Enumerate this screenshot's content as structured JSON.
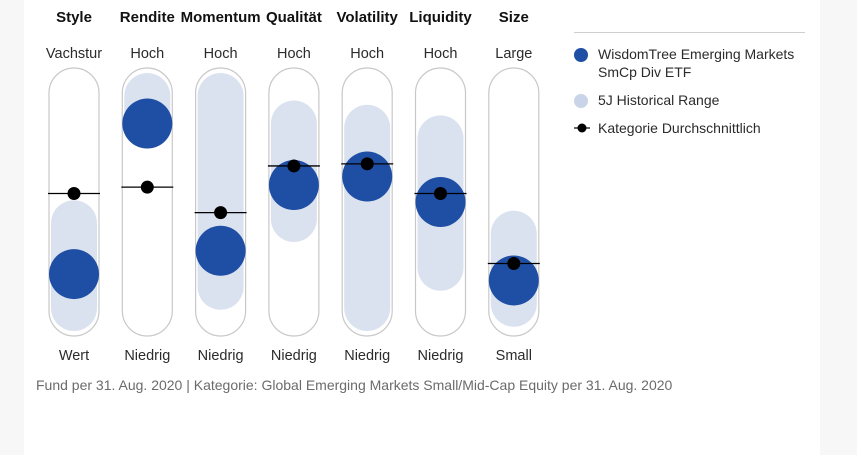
{
  "chart_data": {
    "type": "range-bubble",
    "scale": [
      0,
      100
    ],
    "columns": [
      {
        "header": "Style",
        "top_label": "Vachstur",
        "bottom_label": "Wert",
        "range": [
          0,
          40
        ],
        "fund": 16,
        "category": 54
      },
      {
        "header": "Rendite",
        "top_label": "Hoch",
        "bottom_label": "Niedrig",
        "range": [
          86,
          100
        ],
        "fund": 87,
        "category": 57
      },
      {
        "header": "Momentum",
        "top_label": "Hoch",
        "bottom_label": "Niedrig",
        "range": [
          10,
          100
        ],
        "fund": 27,
        "category": 45
      },
      {
        "header": "Qualität",
        "top_label": "Hoch",
        "bottom_label": "Niedrig",
        "range": [
          42,
          87
        ],
        "fund": 58,
        "category": 67
      },
      {
        "header": "Volatility",
        "top_label": "Hoch",
        "bottom_label": "Niedrig",
        "range": [
          0,
          85
        ],
        "fund": 62,
        "category": 68
      },
      {
        "header": "Liquidity",
        "top_label": "Hoch",
        "bottom_label": "Niedrig",
        "range": [
          19,
          80
        ],
        "fund": 50,
        "category": 54
      },
      {
        "header": "Size",
        "top_label": "Large",
        "bottom_label": "Small",
        "range": [
          2,
          35
        ],
        "fund": 13,
        "category": 21
      }
    ],
    "legend": [
      {
        "name": "WisdomTree Emerging Markets SmCp Div ETF",
        "marker": "fund"
      },
      {
        "name": "5J Historical Range",
        "marker": "range"
      },
      {
        "name": "Kategorie Durchschnittlich",
        "marker": "category"
      }
    ],
    "colors": {
      "fund": "#1f4fa4",
      "range": "#dbe2ef",
      "category": "#000000",
      "pill_border": "#c8c8c8"
    }
  },
  "footer": "Fund per 31. Aug. 2020 | Kategorie: Global Emerging Markets Small/Mid-Cap Equity per 31. Aug. 2020"
}
